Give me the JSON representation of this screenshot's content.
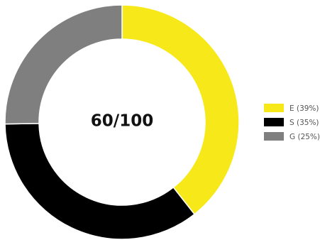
{
  "chart_data": {
    "type": "pie",
    "variant": "donut",
    "center_label": "60/100",
    "slices": [
      {
        "key": "E",
        "label": "E (39%)",
        "value": 39,
        "color": "#f7e81a"
      },
      {
        "key": "S",
        "label": "S (35%)",
        "value": 35,
        "color": "#000000"
      },
      {
        "key": "G",
        "label": "G (25%)",
        "value": 25,
        "color": "#7f7f7f"
      }
    ],
    "legend_position": "right",
    "slice_border_color": "#ffffff"
  }
}
